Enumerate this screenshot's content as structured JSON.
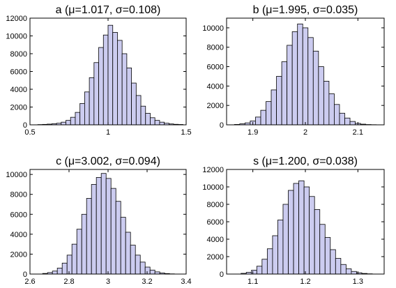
{
  "chart_data": [
    {
      "type": "bar",
      "title": "a  (μ=1.017, σ=0.108)",
      "xlim": [
        0.5,
        1.5
      ],
      "ylim": [
        0,
        12000
      ],
      "xticks": [
        0.5,
        1,
        1.5
      ],
      "xtick_labels": [
        "0.5",
        "1",
        "1.5"
      ],
      "yticks": [
        0,
        2000,
        4000,
        6000,
        8000,
        10000,
        12000
      ],
      "ytick_labels": [
        "0",
        "2000",
        "4000",
        "6000",
        "8000",
        "10000",
        "12000"
      ],
      "bin_edges": [
        0.55,
        0.58,
        0.61,
        0.64,
        0.67,
        0.7,
        0.73,
        0.76,
        0.79,
        0.82,
        0.85,
        0.88,
        0.91,
        0.94,
        0.97,
        1.0,
        1.03,
        1.06,
        1.09,
        1.12,
        1.15,
        1.18,
        1.21,
        1.24,
        1.27,
        1.3,
        1.33,
        1.36,
        1.39,
        1.42,
        1.45,
        1.48
      ],
      "values": [
        30,
        50,
        80,
        120,
        180,
        300,
        500,
        850,
        1400,
        2400,
        3700,
        5300,
        7000,
        8700,
        10100,
        11200,
        10400,
        9500,
        8000,
        6400,
        4700,
        3300,
        2100,
        1300,
        800,
        500,
        300,
        180,
        100,
        60,
        40
      ]
    },
    {
      "type": "bar",
      "title": "b  (μ=1.995, σ=0.035)",
      "xlim": [
        1.85,
        2.15
      ],
      "ylim": [
        0,
        11000
      ],
      "xticks": [
        1.9,
        2.0,
        2.1
      ],
      "xtick_labels": [
        "1.9",
        "2",
        "2.1"
      ],
      "yticks": [
        0,
        2000,
        4000,
        6000,
        8000,
        10000
      ],
      "ytick_labels": [
        "0",
        "2000",
        "4000",
        "6000",
        "8000",
        "10000"
      ],
      "bin_edges": [
        1.865,
        1.875,
        1.885,
        1.895,
        1.905,
        1.915,
        1.925,
        1.935,
        1.945,
        1.955,
        1.965,
        1.975,
        1.985,
        1.995,
        2.005,
        2.015,
        2.025,
        2.035,
        2.045,
        2.055,
        2.065,
        2.075,
        2.085,
        2.095,
        2.105,
        2.115,
        2.125,
        2.135
      ],
      "values": [
        40,
        100,
        200,
        400,
        800,
        1500,
        2400,
        3600,
        5000,
        6500,
        8200,
        9600,
        10400,
        10000,
        9000,
        7600,
        6000,
        4500,
        3200,
        2100,
        1200,
        700,
        350,
        150,
        70,
        30,
        15
      ]
    },
    {
      "type": "bar",
      "title": "c  (μ=3.002, σ=0.094)",
      "xlim": [
        2.6,
        3.4
      ],
      "ylim": [
        0,
        10500
      ],
      "xticks": [
        2.6,
        2.8,
        3.0,
        3.2,
        3.4
      ],
      "xtick_labels": [
        "2.6",
        "2.8",
        "3",
        "3.2",
        "3.4"
      ],
      "yticks": [
        0,
        2000,
        4000,
        6000,
        8000,
        10000
      ],
      "ytick_labels": [
        "0",
        "2000",
        "4000",
        "6000",
        "8000",
        "10000"
      ],
      "bin_edges": [
        2.665,
        2.69,
        2.715,
        2.74,
        2.765,
        2.79,
        2.815,
        2.84,
        2.865,
        2.89,
        2.915,
        2.94,
        2.965,
        2.99,
        3.015,
        3.04,
        3.065,
        3.09,
        3.115,
        3.14,
        3.165,
        3.19,
        3.215,
        3.24,
        3.265,
        3.29,
        3.315,
        3.34
      ],
      "values": [
        60,
        150,
        300,
        600,
        1100,
        1900,
        3000,
        4500,
        6000,
        7600,
        9000,
        9700,
        10100,
        9600,
        8600,
        7300,
        5700,
        4200,
        2900,
        1900,
        1200,
        700,
        400,
        220,
        110,
        50,
        20
      ]
    },
    {
      "type": "bar",
      "title": "s  (μ=1.200, σ=0.038)",
      "xlim": [
        1.05,
        1.35
      ],
      "ylim": [
        0,
        12000
      ],
      "xticks": [
        1.1,
        1.2,
        1.3
      ],
      "xtick_labels": [
        "1.1",
        "1.2",
        "1.3"
      ],
      "yticks": [
        0,
        2000,
        4000,
        6000,
        8000,
        10000,
        12000
      ],
      "ytick_labels": [
        "0",
        "2000",
        "4000",
        "6000",
        "8000",
        "10000",
        "12000"
      ],
      "bin_edges": [
        1.0775,
        1.0875,
        1.0975,
        1.1075,
        1.1175,
        1.1275,
        1.1375,
        1.1475,
        1.1575,
        1.1675,
        1.1775,
        1.1875,
        1.1975,
        1.2075,
        1.2175,
        1.2275,
        1.2375,
        1.2475,
        1.2575,
        1.2675,
        1.2775,
        1.2875,
        1.2975,
        1.3075,
        1.3175,
        1.3275
      ],
      "values": [
        80,
        200,
        450,
        900,
        1700,
        2900,
        4400,
        6200,
        8000,
        9600,
        10400,
        10700,
        10000,
        8900,
        7400,
        5700,
        4200,
        2800,
        1800,
        1100,
        600,
        300,
        150,
        70,
        30
      ]
    }
  ],
  "colors": {
    "bar_fill": "#ccccf0",
    "bar_stroke": "#000000",
    "axis": "#000000",
    "background": "#ffffff"
  }
}
